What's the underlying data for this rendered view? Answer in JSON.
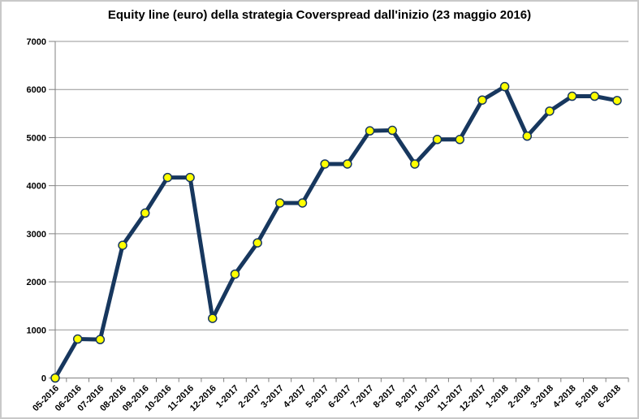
{
  "chart_data": {
    "type": "line",
    "title": "Equity line (euro) della strategia Coverspread dall'inizio (23 maggio 2016)",
    "categories": [
      "05-2016",
      "06-2016",
      "07-2016",
      "08-2016",
      "09-2016",
      "10-2016",
      "11-2016",
      "12-2016",
      "1-2017",
      "2-2017",
      "3-2017",
      "4-2017",
      "5-2017",
      "6-2017",
      "7-2017",
      "8-2017",
      "9-2017",
      "10-2017",
      "11-2017",
      "12-2017",
      "1-2018",
      "2-2018",
      "3-2018",
      "4-2018",
      "5-2018",
      "6-2018"
    ],
    "values": [
      0,
      810,
      800,
      2760,
      3430,
      4170,
      4170,
      1240,
      2160,
      2810,
      3640,
      3640,
      4450,
      4450,
      5140,
      5150,
      4450,
      4960,
      4960,
      5780,
      6060,
      5030,
      5550,
      5860,
      5860,
      5770
    ],
    "ylim": [
      0,
      7000
    ],
    "yticks": [
      0,
      1000,
      2000,
      3000,
      4000,
      5000,
      6000,
      7000
    ],
    "xlabel": "",
    "ylabel": "",
    "grid": "horizontal",
    "legend": "none",
    "colors": {
      "line": "#17375E",
      "marker_fill": "#FFFF00",
      "marker_stroke": "#17375E",
      "grid": "#969696",
      "axis": "#808080",
      "text": "#000000",
      "background": "#FFFFFF",
      "border": "#C9C9C9"
    }
  }
}
